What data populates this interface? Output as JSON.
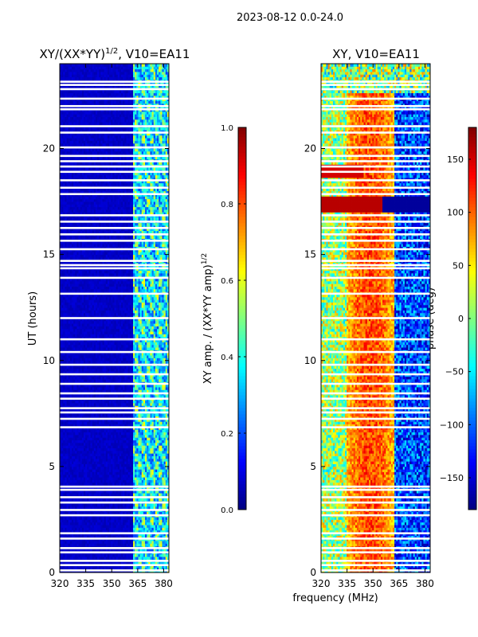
{
  "figure": {
    "suptitle": "2023-08-12 0.0-24.0",
    "shared_xlabel": "frequency (MHz)"
  },
  "chart_data": [
    {
      "type": "heatmap",
      "id": "amp",
      "title_prefix": "XY/(XX*YY)",
      "title_sup": "1/2",
      "title_suffix": ", V10=EA11",
      "ylabel": "UT (hours)",
      "xlabel": "",
      "xlim": [
        320,
        383
      ],
      "ylim": [
        0,
        24
      ],
      "xticks": [
        320,
        335,
        350,
        365,
        380
      ],
      "yticks": [
        0,
        5,
        10,
        15,
        20
      ],
      "colorbar": {
        "label_main": "XY amp. / (XX*YY amp)",
        "label_sup": "1/2",
        "range": [
          0.0,
          1.0
        ],
        "ticks": [
          0.0,
          0.2,
          0.4,
          0.6,
          0.8,
          1.0
        ],
        "tick_labels": [
          "0.0",
          "0.2",
          "0.4",
          "0.6",
          "0.8",
          "1.0"
        ],
        "colormap": "jet"
      },
      "description": "Normalized XY amplitude vs frequency and UT; low (~0.05) below ~360 MHz, patchy 0.2–0.6 above 362 MHz"
    },
    {
      "type": "heatmap",
      "id": "phase",
      "title": "XY, V10=EA11",
      "ylabel": "",
      "xlabel": "frequency (MHz)",
      "xlim": [
        320,
        383
      ],
      "ylim": [
        0,
        24
      ],
      "xticks": [
        320,
        335,
        350,
        365,
        380
      ],
      "yticks": [
        0,
        5,
        10,
        15,
        20
      ],
      "colorbar": {
        "label": "phase (deg)",
        "range": [
          -180,
          180
        ],
        "ticks": [
          -150,
          -100,
          -50,
          0,
          50,
          100,
          150
        ],
        "tick_labels": [
          "−150",
          "−100",
          "−50",
          "0",
          "50",
          "100",
          "150"
        ],
        "colormap": "jet"
      },
      "description": "XY phase vs frequency and UT; band of ~+100 deg near 340–360 MHz, blue ~-130 deg near 365–380 MHz"
    }
  ],
  "data_gaps_hours": [
    0.1,
    0.35,
    0.55,
    0.95,
    1.15,
    1.6,
    1.85,
    2.7,
    2.95,
    3.3,
    3.55,
    3.9,
    4.05,
    6.85,
    7.25,
    7.55,
    7.75,
    8.2,
    8.45,
    8.9,
    9.35,
    9.8,
    10.4,
    11.0,
    12.0,
    13.15,
    13.9,
    14.35,
    14.5,
    14.7,
    15.25,
    15.65,
    15.95,
    16.25,
    16.55,
    16.85,
    17.85,
    18.15,
    18.5,
    18.9,
    19.15,
    19.4,
    19.65,
    20.05,
    20.75,
    21.05,
    21.85,
    22.0,
    22.35,
    22.8,
    23.0,
    23.15
  ]
}
